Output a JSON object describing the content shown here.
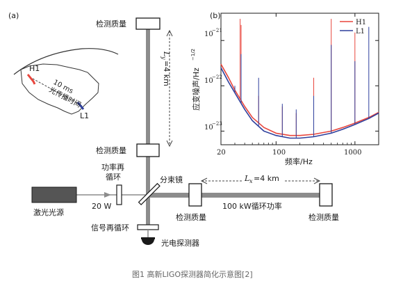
{
  "panel_a": {
    "label": "(a)",
    "mirror_top": "检测质量",
    "mirror_mid": "检测质量",
    "mirror_right_near": "检测质量",
    "mirror_right_far": "检测质量",
    "ly_label": "L",
    "ly_sub": "y",
    "ly_value": "=4 km",
    "lx_label": "L",
    "lx_sub": "x",
    "lx_value": "=4 km",
    "power_recycling": [
      "功率再",
      "循环"
    ],
    "beam_splitter": "分束镜",
    "laser": "激光光源",
    "laser_power": "20 W",
    "arm_power": "100 kW循环功率",
    "signal_recycling": "信号再循环",
    "photodetector": "光电探测器",
    "map": {
      "h1": "H1",
      "l1": "L1",
      "delay_ms": "10 ms",
      "delay_text": "光传播时间"
    }
  },
  "panel_b": {
    "label": "(b)",
    "ylabel": "应变噪声/Hz",
    "ylabel_exp": "−1/2",
    "xlabel": "频率/Hz",
    "x_ticks": [
      "20",
      "100",
      "1000"
    ],
    "y_ticks": [
      {
        "base": "10",
        "exp": "−21"
      },
      {
        "base": "10",
        "exp": "−22"
      },
      {
        "base": "10",
        "exp": "−23"
      }
    ]
  },
  "caption": "图1 高新LIGO探测器简化示意图[2]",
  "colors": {
    "h1": "#e8453c",
    "l1": "#2e3f9c",
    "beam": "#8c8c8c",
    "laser": "#555555",
    "caption": "#666666"
  },
  "chart_data": {
    "type": "line",
    "log_x": true,
    "log_y": true,
    "xlim": [
      20,
      2000
    ],
    "ylim": [
      5e-24,
      4e-21
    ],
    "x_ticks": [
      20,
      100,
      1000
    ],
    "y_ticks": [
      1e-23,
      1e-22,
      1e-21
    ],
    "legend_position": "top-right",
    "x": [
      20,
      25,
      30,
      40,
      50,
      70,
      100,
      150,
      200,
      300,
      500,
      700,
      1000,
      1500,
      2000
    ],
    "series": [
      {
        "name": "H1",
        "color": "#e8453c",
        "values": [
          3e-22,
          1.5e-22,
          8e-23,
          3.5e-23,
          2e-23,
          1.2e-23,
          9e-24,
          8e-24,
          8e-24,
          8.5e-24,
          1e-23,
          1.2e-23,
          1.5e-23,
          2e-23,
          2.6e-23
        ]
      },
      {
        "name": "L1",
        "color": "#2e3f9c",
        "values": [
          2.5e-22,
          1.2e-22,
          7e-23,
          3e-23,
          1.7e-23,
          1e-23,
          8e-24,
          7e-24,
          7e-24,
          7.5e-24,
          9e-24,
          1.1e-23,
          1.4e-23,
          1.9e-23,
          2.5e-23
        ]
      }
    ],
    "h1_lines": [
      {
        "f": 35,
        "v": 3e-21
      },
      {
        "f": 36,
        "v": 2.2e-21
      },
      {
        "f": 60,
        "v": 6e-23
      },
      {
        "f": 120,
        "v": 3.5e-23
      },
      {
        "f": 180,
        "v": 2.5e-23
      },
      {
        "f": 300,
        "v": 1.5e-22
      },
      {
        "f": 500,
        "v": 3e-21
      },
      {
        "f": 1000,
        "v": 1.5e-21
      }
    ],
    "l1_lines": [
      {
        "f": 30,
        "v": 1e-22
      },
      {
        "f": 36,
        "v": 5e-22
      },
      {
        "f": 60,
        "v": 1.5e-22
      },
      {
        "f": 120,
        "v": 4e-23
      },
      {
        "f": 180,
        "v": 3e-23
      },
      {
        "f": 300,
        "v": 6e-23
      },
      {
        "f": 500,
        "v": 8e-22
      },
      {
        "f": 1000,
        "v": 3.5e-22
      },
      {
        "f": 1500,
        "v": 2e-21
      }
    ]
  }
}
